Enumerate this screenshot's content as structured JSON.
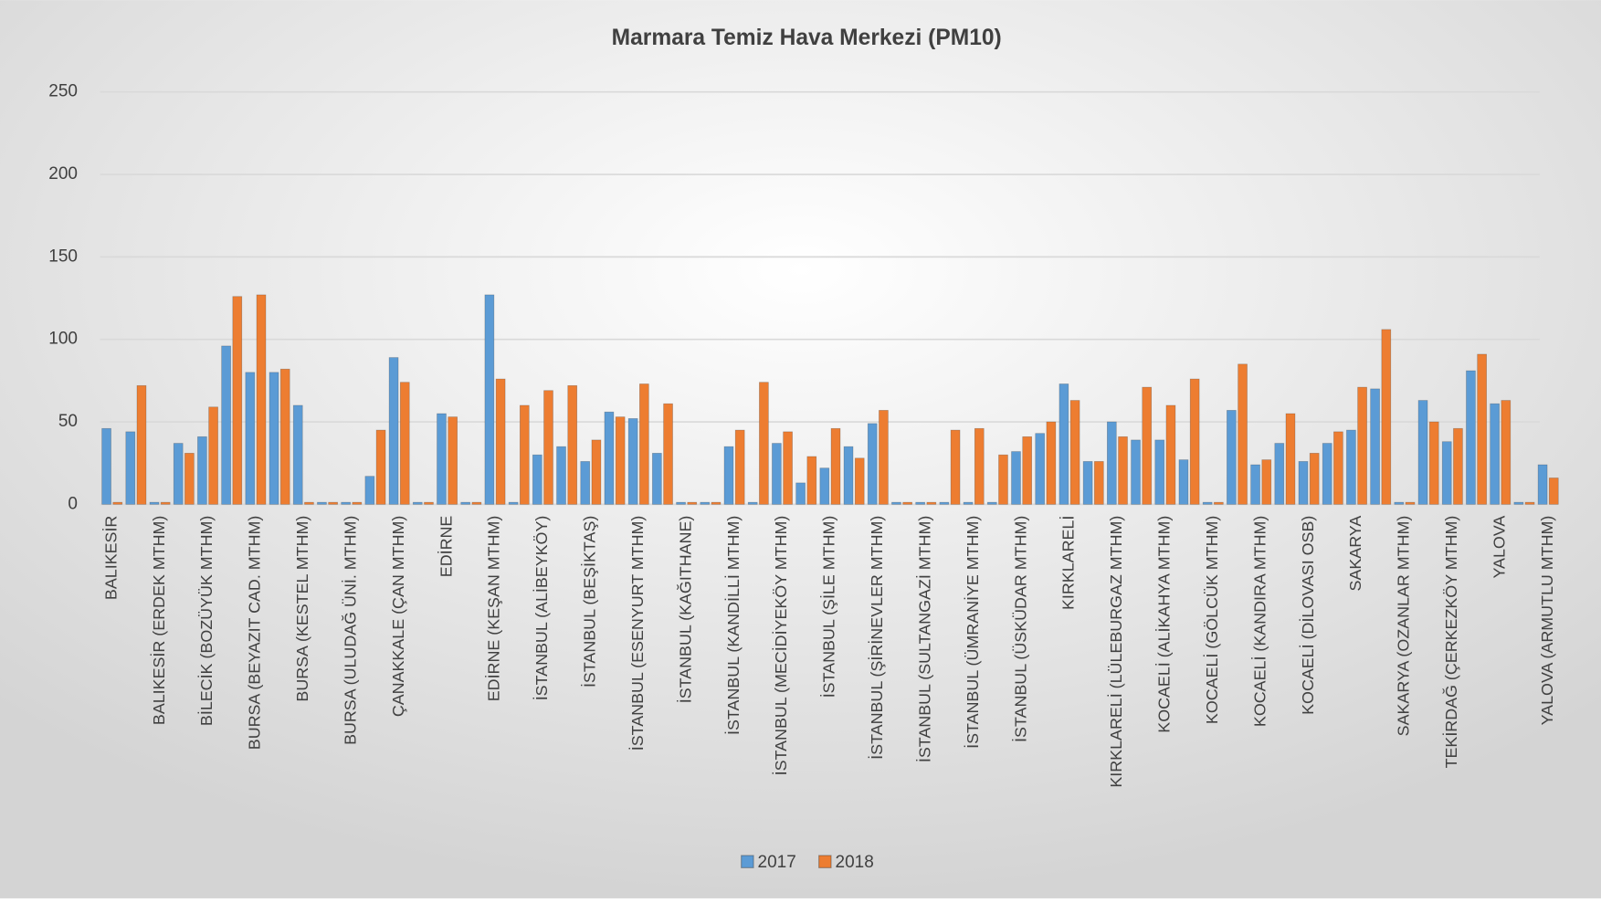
{
  "chart_data": {
    "type": "bar",
    "title": "Marmara Temiz Hava Merkezi (PM10)",
    "categories": [
      "BALIKESİR",
      null,
      "BALIKESİR (ERDEK MTHM)",
      null,
      "BİLECİK (BOZÜYÜK MTHM)",
      null,
      "BURSA (BEYAZIT CAD. MTHM)",
      null,
      "BURSA (KESTEL MTHM)",
      null,
      "BURSA (ULUDAĞ ÜNİ. MTHM)",
      null,
      "ÇANAKKALE (ÇAN MTHM)",
      null,
      "EDİRNE",
      null,
      "EDİRNE (KEŞAN MTHM)",
      null,
      "İSTANBUL (ALİBEYKÖY)",
      null,
      "İSTANBUL (BEŞİKTAŞ)",
      null,
      "İSTANBUL (ESENYURT MTHM)",
      null,
      "İSTANBUL (KAĞITHANE)",
      null,
      "İSTANBUL (KANDİLLİ MTHM)",
      null,
      "İSTANBUL (MECİDİYEKÖY MTHM)",
      null,
      "İSTANBUL (ŞİLE MTHM)",
      null,
      "İSTANBUL (ŞİRİNEVLER MTHM)",
      null,
      "İSTANBUL (SULTANGAZİ MTHM)",
      null,
      "İSTANBUL (ÜMRANİYE MTHM)",
      null,
      "İSTANBUL (ÜSKÜDAR MTHM)",
      null,
      "KIRKLARELİ",
      null,
      "KIRKLARELİ (LÜLEBURGAZ MTHM)",
      null,
      "KOCAELİ (ALİKAHYA MTHM)",
      null,
      "KOCAELİ (GÖLCÜK MTHM)",
      null,
      "KOCAELİ (KANDIRA MTHM)",
      null,
      "KOCAELİ (DİLOVASI OSB)",
      null,
      "SAKARYA",
      null,
      "SAKARYA (OZANLAR MTHM)",
      null,
      "TEKİRDAĞ (ÇERKEZKÖY MTHM)",
      null,
      "YALOVA",
      null,
      "YALOVA (ARMUTLU MTHM)"
    ],
    "series": [
      {
        "name": "2017",
        "color": "#5b9bd5",
        "values": [
          46,
          44,
          0,
          37,
          41,
          96,
          80,
          80,
          60,
          0,
          0,
          17,
          89,
          0,
          55,
          0,
          127,
          0,
          30,
          35,
          26,
          56,
          52,
          31,
          0,
          0,
          35,
          0,
          37,
          13,
          22,
          35,
          49,
          0,
          0,
          0,
          0,
          0,
          32,
          43,
          73,
          26,
          50,
          39,
          39,
          27,
          0,
          57,
          24,
          37,
          26,
          37,
          45,
          70,
          0,
          63,
          38,
          81,
          61,
          0,
          24
        ]
      },
      {
        "name": "2018",
        "color": "#ed7d31",
        "values": [
          0,
          72,
          0,
          31,
          59,
          126,
          127,
          82,
          0,
          0,
          0,
          45,
          74,
          0,
          53,
          0,
          76,
          60,
          69,
          72,
          39,
          53,
          73,
          61,
          0,
          0,
          45,
          74,
          44,
          29,
          46,
          28,
          57,
          0,
          0,
          45,
          46,
          30,
          41,
          50,
          63,
          26,
          41,
          71,
          60,
          76,
          0,
          85,
          27,
          55,
          31,
          44,
          71,
          106,
          0,
          50,
          46,
          91,
          63,
          0,
          16
        ]
      }
    ],
    "ylim": [
      0,
      250
    ],
    "yticks": [
      0,
      50,
      100,
      150,
      200,
      250
    ],
    "grid": true,
    "legend": "bottom"
  }
}
